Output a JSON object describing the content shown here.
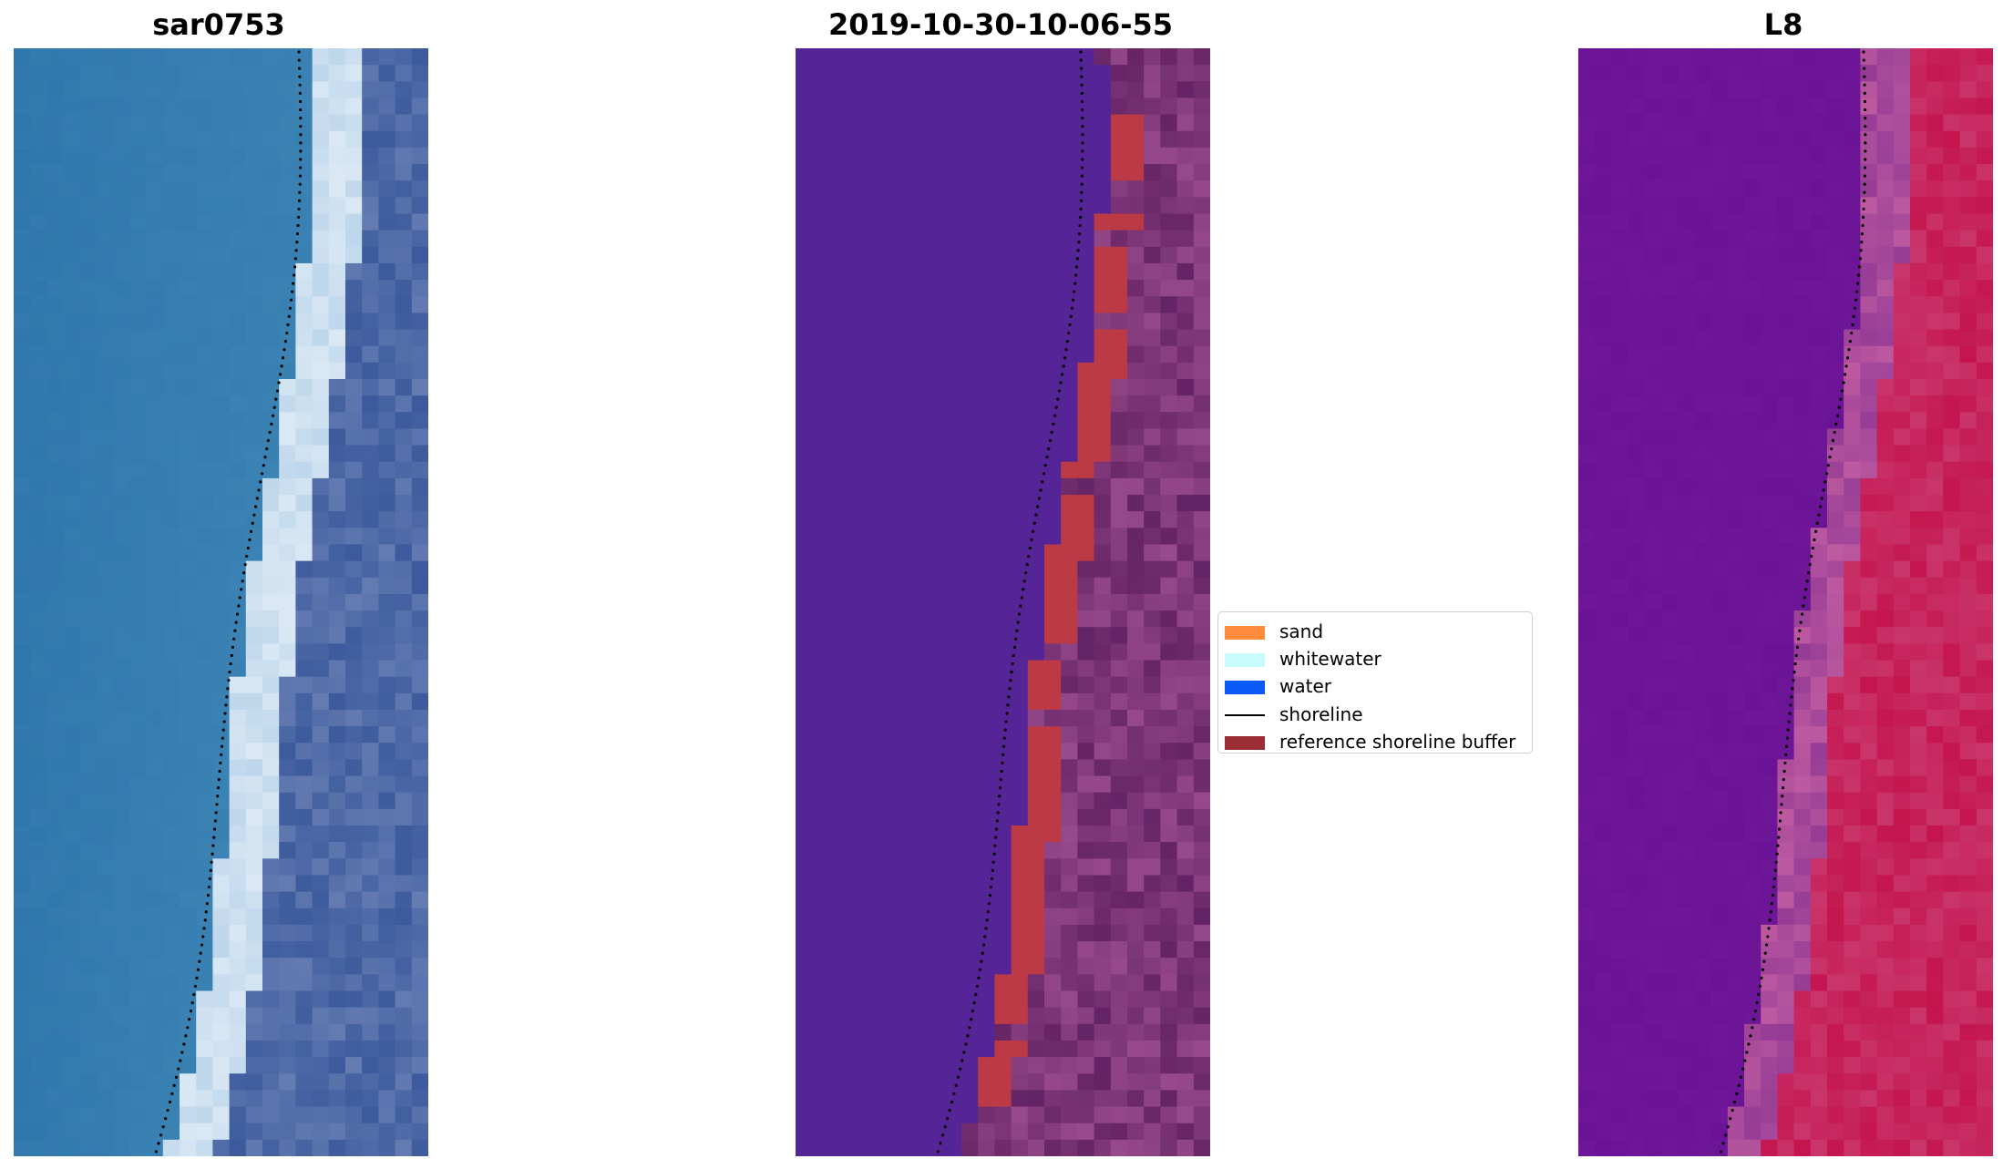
{
  "panels": [
    {
      "title": "sar0753",
      "palette": "rgb"
    },
    {
      "title": "2019-10-30-10-06-55",
      "palette": "classified"
    },
    {
      "title": "L8",
      "palette": "index"
    }
  ],
  "legend": {
    "items": [
      {
        "label": "sand",
        "color": "#ff8c3c",
        "kind": "patch"
      },
      {
        "label": "whitewater",
        "color": "#c8fcfc",
        "kind": "patch"
      },
      {
        "label": "water",
        "color": "#0a5af5",
        "kind": "patch"
      },
      {
        "label": "shoreline",
        "color": "#000000",
        "kind": "line"
      },
      {
        "label": "reference shoreline buffer",
        "color": "#9b2d35",
        "kind": "patch"
      }
    ]
  },
  "colors": {
    "classified_water": "#552497",
    "classified_buffer": "#bb3a45",
    "index_water": "#6a1396",
    "index_land": "#c4154f",
    "rgb_water": "#2e77ad",
    "rgb_whitewater": "#dbe9f5",
    "rgb_land": "#3c5a9c"
  }
}
